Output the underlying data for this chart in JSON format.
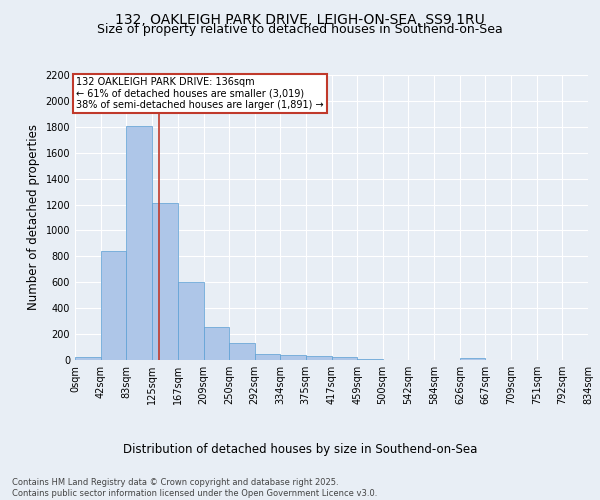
{
  "title1": "132, OAKLEIGH PARK DRIVE, LEIGH-ON-SEA, SS9 1RU",
  "title2": "Size of property relative to detached houses in Southend-on-Sea",
  "xlabel": "Distribution of detached houses by size in Southend-on-Sea",
  "ylabel": "Number of detached properties",
  "footer": "Contains HM Land Registry data © Crown copyright and database right 2025.\nContains public sector information licensed under the Open Government Licence v3.0.",
  "bin_labels": [
    "0sqm",
    "42sqm",
    "83sqm",
    "125sqm",
    "167sqm",
    "209sqm",
    "250sqm",
    "292sqm",
    "334sqm",
    "375sqm",
    "417sqm",
    "459sqm",
    "500sqm",
    "542sqm",
    "584sqm",
    "626sqm",
    "667sqm",
    "709sqm",
    "751sqm",
    "792sqm",
    "834sqm"
  ],
  "bin_edges": [
    0,
    42,
    83,
    125,
    167,
    209,
    250,
    292,
    334,
    375,
    417,
    459,
    500,
    542,
    584,
    626,
    667,
    709,
    751,
    792,
    834
  ],
  "bar_heights": [
    25,
    840,
    1810,
    1210,
    600,
    255,
    130,
    50,
    42,
    30,
    20,
    10,
    0,
    0,
    0,
    15,
    0,
    0,
    0,
    0
  ],
  "bar_color": "#aec6e8",
  "bar_edgecolor": "#5a9fd4",
  "vline_x": 136,
  "vline_color": "#c0392b",
  "annotation_line1": "132 OAKLEIGH PARK DRIVE: 136sqm",
  "annotation_line2": "← 61% of detached houses are smaller (3,019)",
  "annotation_line3": "38% of semi-detached houses are larger (1,891) →",
  "annotation_box_color": "#c0392b",
  "ylim": [
    0,
    2200
  ],
  "yticks": [
    0,
    200,
    400,
    600,
    800,
    1000,
    1200,
    1400,
    1600,
    1800,
    2000,
    2200
  ],
  "bg_color": "#e8eef5",
  "plot_bg_color": "#e8eef5",
  "grid_color": "#ffffff",
  "title_fontsize": 10,
  "subtitle_fontsize": 9,
  "axis_label_fontsize": 8.5,
  "tick_fontsize": 7,
  "footer_fontsize": 6
}
